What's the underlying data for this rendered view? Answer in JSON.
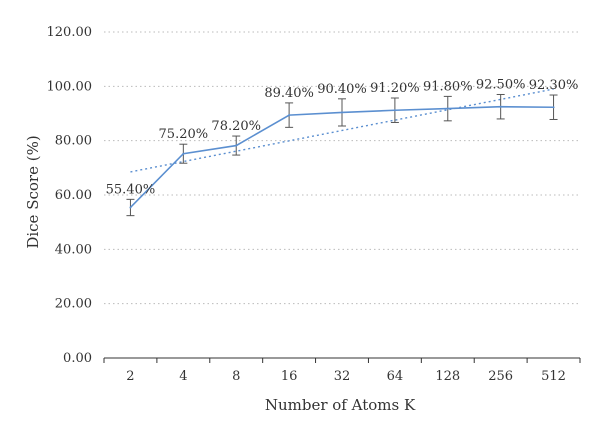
{
  "chart_data": {
    "type": "line",
    "xlabel": "Number of Atoms K",
    "ylabel": "Dice Score (%)",
    "categories": [
      "2",
      "4",
      "8",
      "16",
      "32",
      "64",
      "128",
      "256",
      "512"
    ],
    "ylim": [
      0,
      120
    ],
    "yticks": [
      "0.00",
      "20.00",
      "40.00",
      "60.00",
      "80.00",
      "100.00",
      "120.00"
    ],
    "grid": "horizontal dotted",
    "series": [
      {
        "values": [
          55.4,
          75.2,
          78.2,
          89.4,
          90.4,
          91.2,
          91.8,
          92.5,
          92.3
        ],
        "labels": [
          "55.40%",
          "75.20%",
          "78.20%",
          "89.40%",
          "90.40%",
          "91.20%",
          "91.80%",
          "92.50%",
          "92.30%"
        ],
        "error": [
          3.0,
          3.5,
          3.5,
          4.5,
          5.0,
          4.5,
          4.5,
          4.5,
          4.5
        ],
        "color": "#5b8fd0"
      }
    ],
    "trendline": {
      "type": "logarithmic",
      "start": 68.5,
      "end": 99.0,
      "style": "dotted",
      "color": "#5b8fd0"
    },
    "colors": {
      "axis": "#333333",
      "grid": "#bbbbbb",
      "errorbar": "#555555"
    }
  }
}
